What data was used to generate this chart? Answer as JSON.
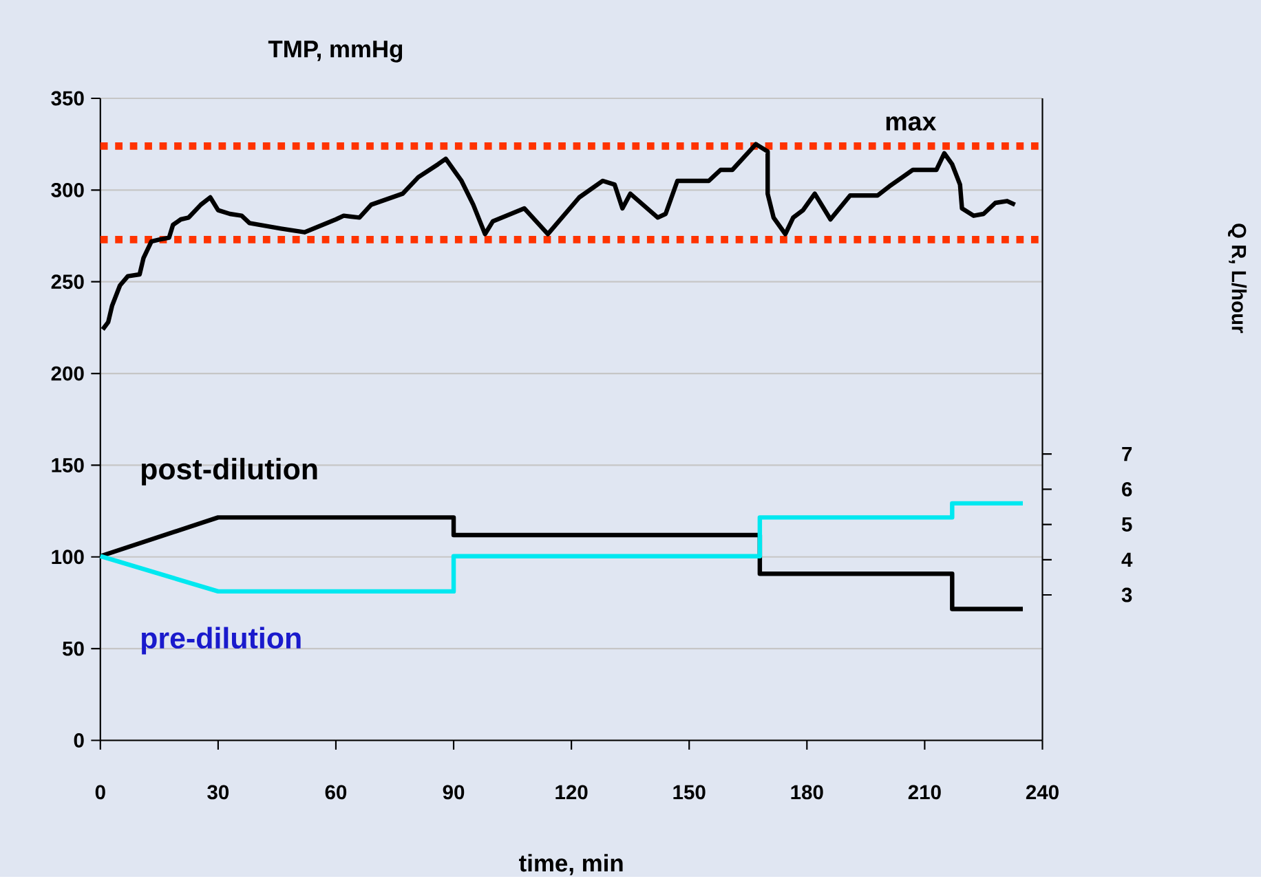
{
  "chart_data": {
    "type": "line",
    "title": "TMP, mmHg",
    "xlabel": "time,  min",
    "y2label": "Q R,  L/hour",
    "xlim": [
      0,
      240
    ],
    "xticks": [
      0,
      30,
      60,
      90,
      120,
      150,
      180,
      210,
      240
    ],
    "ylim": [
      0,
      350
    ],
    "yticks": [
      0,
      50,
      100,
      150,
      200,
      250,
      300,
      350
    ],
    "y2lim": [
      -1.13,
      17.1
    ],
    "y2ticks": [
      3,
      4,
      5,
      6,
      7
    ],
    "grid": "y",
    "marker": "none",
    "line_style": "solid",
    "ref_lines": [
      {
        "axis": "y",
        "value": 324,
        "label": "max",
        "color": "#ff3300",
        "line_style": "dotted"
      },
      {
        "axis": "y",
        "value": 273,
        "color": "#ff3300",
        "line_style": "dotted"
      }
    ],
    "series": [
      {
        "color": "#000000",
        "x": [
          0.6,
          2,
          3,
          5,
          7,
          10,
          11,
          13,
          15,
          17.5,
          18.5,
          20.5,
          22.5,
          25.6,
          28,
          30,
          33,
          36,
          38,
          46,
          52,
          60,
          62,
          66,
          69,
          77,
          81,
          86,
          88,
          92,
          95,
          98,
          100,
          108,
          111,
          114,
          122,
          128,
          131,
          133,
          135,
          142,
          144,
          147,
          155,
          158,
          161,
          167,
          170,
          170,
          171.5,
          174.5,
          176.5,
          179,
          182,
          186,
          191,
          198,
          201,
          207,
          213,
          215,
          217,
          219,
          219.5,
          222.5,
          225,
          228,
          231,
          233
        ],
        "values": [
          224,
          228,
          237,
          248,
          253,
          254,
          263,
          272,
          273,
          274,
          281,
          284,
          285,
          292,
          296,
          289,
          287,
          286,
          282,
          279,
          277,
          284,
          286,
          285,
          292,
          298,
          307,
          314,
          317,
          305,
          292,
          276,
          283,
          290,
          283,
          276,
          296,
          305,
          303,
          290,
          298,
          285,
          287,
          305,
          305,
          311,
          311,
          325,
          321,
          298,
          285,
          276,
          285,
          289,
          298,
          284,
          297,
          297,
          302,
          311,
          311,
          320,
          314,
          303,
          290,
          286,
          287,
          293,
          294,
          292
        ]
      },
      {
        "name": "post-dilution",
        "color": "#000000",
        "axis": "y2",
        "x": [
          0,
          30,
          90,
          90,
          168,
          168,
          217,
          217,
          235
        ],
        "values": [
          4.1,
          5.2,
          5.2,
          4.7,
          4.7,
          3.6,
          3.6,
          2.6,
          2.6
        ]
      },
      {
        "name": "pre-dilution",
        "color": "#00e8f0",
        "axis": "y2",
        "x": [
          0,
          30,
          90,
          90,
          168,
          168,
          217,
          217,
          235
        ],
        "values": [
          4.1,
          3.1,
          3.1,
          4.1,
          4.1,
          5.2,
          5.2,
          5.6,
          5.6
        ]
      }
    ]
  }
}
